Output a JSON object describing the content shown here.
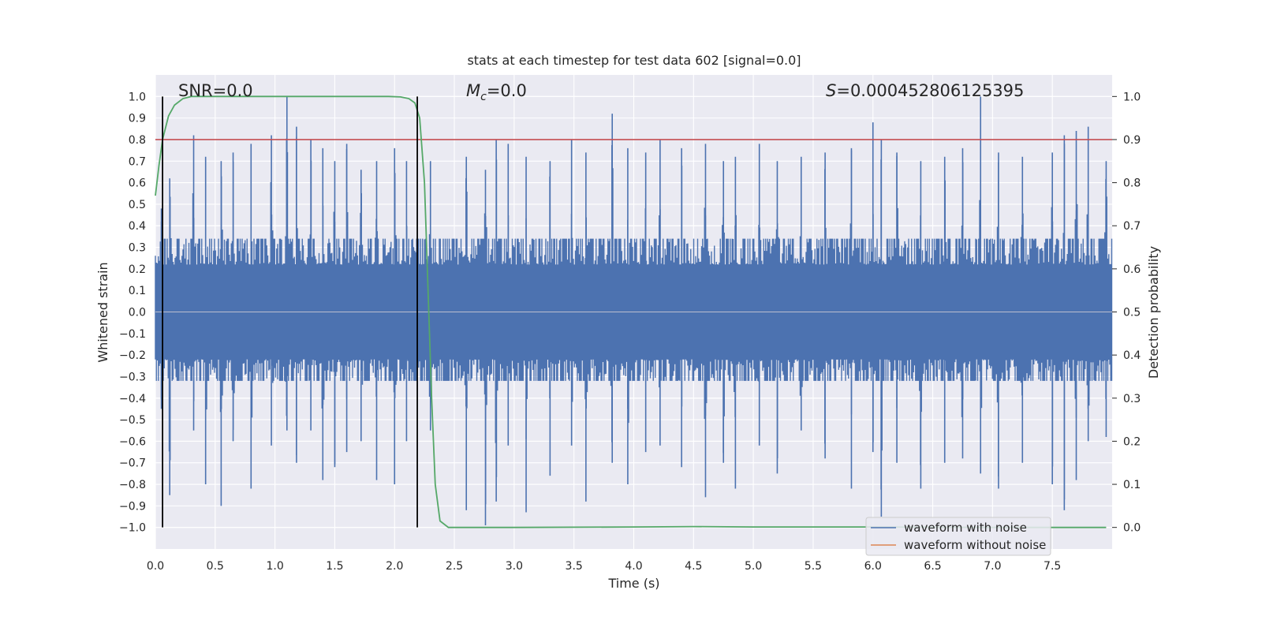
{
  "chart_data": {
    "type": "line",
    "title": "stats at each timestep for test data 602 [signal=0.0]",
    "xlabel": "Time (s)",
    "ylabel": "Whitened strain",
    "y2label": "Detection probability",
    "xlim": [
      0.0,
      8.0
    ],
    "ylim": [
      -1.1,
      1.1
    ],
    "y2lim": [
      -0.05,
      1.05
    ],
    "xticks": [
      0.0,
      0.5,
      1.0,
      1.5,
      2.0,
      2.5,
      3.0,
      3.5,
      4.0,
      4.5,
      5.0,
      5.5,
      6.0,
      6.5,
      7.0,
      7.5
    ],
    "xtick_labels": [
      "0.0",
      "0.5",
      "1.0",
      "1.5",
      "2.0",
      "2.5",
      "3.0",
      "3.5",
      "4.0",
      "4.5",
      "5.0",
      "5.5",
      "6.0",
      "6.5",
      "7.0",
      "7.5"
    ],
    "yticks": [
      1.0,
      0.9,
      0.8,
      0.7,
      0.6,
      0.5,
      0.4,
      0.3,
      0.2,
      0.1,
      0.0,
      -0.1,
      -0.2,
      -0.3,
      -0.4,
      -0.5,
      -0.6,
      -0.7,
      -0.8,
      -0.9,
      -1.0
    ],
    "ytick_labels": [
      "1.0",
      "0.9",
      "0.8",
      "0.7",
      "0.6",
      "0.5",
      "0.4",
      "0.3",
      "0.2",
      "0.1",
      "0.0",
      "−0.1",
      "−0.2",
      "−0.3",
      "−0.4",
      "−0.5",
      "−0.6",
      "−0.7",
      "−0.8",
      "−0.9",
      "−1.0"
    ],
    "y2ticks": [
      1.0,
      0.9,
      0.8,
      0.7,
      0.6,
      0.5,
      0.4,
      0.3,
      0.2,
      0.1,
      0.0
    ],
    "y2tick_labels": [
      "1.0",
      "0.9",
      "0.8",
      "0.7",
      "0.6",
      "0.5",
      "0.4",
      "0.3",
      "0.2",
      "0.1",
      "0.0"
    ],
    "grid": true,
    "annotations": {
      "snr_prefix": "SNR=",
      "snr_value": "0.0",
      "mc_symbol": "M",
      "mc_subscript": "c",
      "mc_value": "=0.0",
      "s_symbol": "S",
      "s_value": "=0.000452806125395"
    },
    "threshold": {
      "axis": "right",
      "value": 0.9,
      "color": "#c44e52"
    },
    "vertical_lines": {
      "x": [
        0.06,
        2.19
      ],
      "ymin": -1.0,
      "ymax": 1.0,
      "color": "#000000"
    },
    "series": [
      {
        "name": "waveform with noise",
        "color": "#4c72b0",
        "axis": "left",
        "sample_rate": 2048,
        "envelope_peaks": [
          [
            0.05,
            0.48,
            -0.45
          ],
          [
            0.12,
            0.62,
            -0.85
          ],
          [
            0.32,
            0.82,
            -0.55
          ],
          [
            0.42,
            0.72,
            -0.8
          ],
          [
            0.55,
            0.7,
            -0.9
          ],
          [
            0.65,
            0.74,
            -0.6
          ],
          [
            0.8,
            0.78,
            -0.82
          ],
          [
            0.97,
            0.82,
            -0.62
          ],
          [
            1.1,
            1.0,
            -0.55
          ],
          [
            1.18,
            0.86,
            -0.7
          ],
          [
            1.3,
            0.8,
            -0.55
          ],
          [
            1.4,
            0.76,
            -0.78
          ],
          [
            1.5,
            0.7,
            -0.72
          ],
          [
            1.6,
            0.78,
            -0.65
          ],
          [
            1.72,
            0.66,
            -0.6
          ],
          [
            1.85,
            0.7,
            -0.78
          ],
          [
            2.0,
            0.76,
            -0.8
          ],
          [
            2.1,
            0.7,
            -0.6
          ],
          [
            2.3,
            0.7,
            -0.55
          ],
          [
            2.6,
            0.72,
            -0.92
          ],
          [
            2.76,
            0.66,
            -0.99
          ],
          [
            2.85,
            0.8,
            -0.88
          ],
          [
            2.95,
            0.78,
            -0.62
          ],
          [
            3.1,
            0.72,
            -0.93
          ],
          [
            3.3,
            0.7,
            -0.76
          ],
          [
            3.48,
            0.8,
            -0.62
          ],
          [
            3.6,
            0.74,
            -0.88
          ],
          [
            3.82,
            0.92,
            -0.7
          ],
          [
            3.95,
            0.76,
            -0.8
          ],
          [
            4.1,
            0.74,
            -0.65
          ],
          [
            4.22,
            0.8,
            -0.62
          ],
          [
            4.4,
            0.76,
            -0.72
          ],
          [
            4.6,
            0.78,
            -0.86
          ],
          [
            4.75,
            0.7,
            -0.7
          ],
          [
            4.85,
            0.72,
            -0.82
          ],
          [
            5.05,
            0.78,
            -0.62
          ],
          [
            5.2,
            0.7,
            -0.75
          ],
          [
            5.4,
            0.72,
            -0.55
          ],
          [
            5.6,
            0.74,
            -0.68
          ],
          [
            5.82,
            0.76,
            -0.82
          ],
          [
            6.0,
            0.88,
            -0.65
          ],
          [
            6.07,
            0.8,
            -0.95
          ],
          [
            6.2,
            0.74,
            -0.7
          ],
          [
            6.4,
            0.7,
            -0.82
          ],
          [
            6.6,
            0.72,
            -0.7
          ],
          [
            6.75,
            0.76,
            -0.68
          ],
          [
            6.9,
            1.0,
            -0.75
          ],
          [
            7.05,
            0.74,
            -0.82
          ],
          [
            7.25,
            0.72,
            -0.7
          ],
          [
            7.5,
            0.74,
            -0.8
          ],
          [
            7.6,
            0.82,
            -0.92
          ],
          [
            7.7,
            0.84,
            -0.78
          ],
          [
            7.8,
            0.86,
            -0.6
          ],
          [
            7.95,
            0.7,
            -0.58
          ]
        ]
      },
      {
        "name": "waveform without noise",
        "color": "#dd8452",
        "axis": "left",
        "values_description": "",
        "x": [
          0.0,
          8.0
        ],
        "y": [
          0.0,
          0.0
        ]
      },
      {
        "name": "detection probability",
        "color": "#55a868",
        "axis": "right",
        "x": [
          0.0,
          0.03,
          0.06,
          0.11,
          0.16,
          0.23,
          0.3,
          0.4,
          1.0,
          1.5,
          1.95,
          2.05,
          2.12,
          2.17,
          2.21,
          2.25,
          2.28,
          2.31,
          2.34,
          2.38,
          2.45,
          3.0,
          4.0,
          4.5,
          5.0,
          6.0,
          7.0,
          7.95
        ],
        "y": [
          0.77,
          0.84,
          0.9,
          0.955,
          0.98,
          0.995,
          1.0,
          1.0,
          1.0,
          1.0,
          1.0,
          0.999,
          0.995,
          0.985,
          0.95,
          0.8,
          0.55,
          0.3,
          0.1,
          0.015,
          0.0,
          0.0,
          0.001,
          0.002,
          0.001,
          0.001,
          0.0,
          0.0
        ]
      }
    ],
    "legend": {
      "location": "lower-right",
      "entries": [
        "waveform with noise",
        "waveform without noise"
      ]
    }
  }
}
